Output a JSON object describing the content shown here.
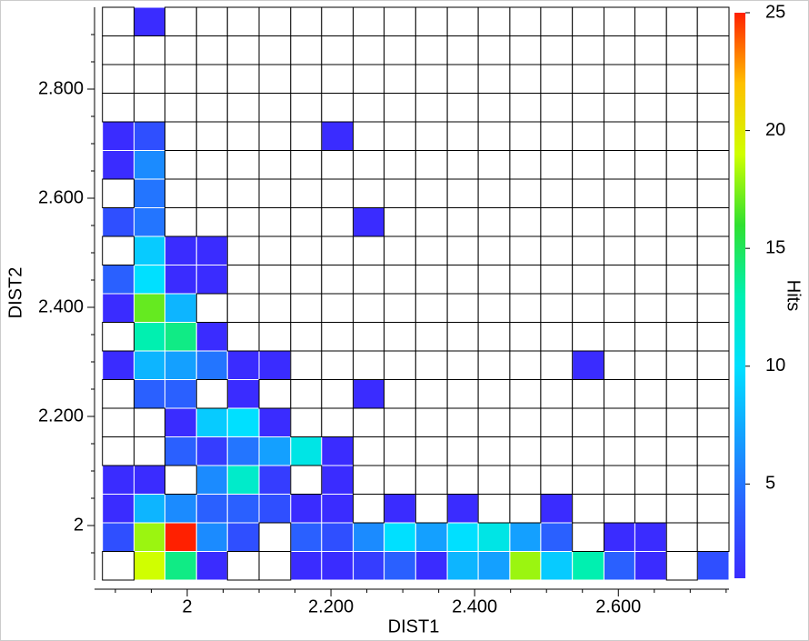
{
  "chart_data": {
    "type": "heatmap",
    "x_label": "DIST1",
    "y_label": "DIST2",
    "colorbar_label": "Hits",
    "xlim": [
      1.871,
      2.754
    ],
    "ylim": [
      1.9,
      2.95
    ],
    "xticks": [
      2,
      {
        "value": 2.2,
        "label": "2.200"
      },
      {
        "value": 2.4,
        "label": "2.400"
      },
      {
        "value": 2.6,
        "label": "2.600"
      }
    ],
    "yticks": [
      2,
      {
        "value": 2.2,
        "label": "2.200"
      },
      {
        "value": 2.4,
        "label": "2.400"
      },
      {
        "value": 2.6,
        "label": "2.600"
      },
      {
        "value": 2.8,
        "label": "2.800"
      }
    ],
    "x_minor_ticks": [
      1.9,
      1.95,
      2.05,
      2.1,
      2.15,
      2.25,
      2.3,
      2.35,
      2.45,
      2.5,
      2.55,
      2.65,
      2.7,
      2.75
    ],
    "y_minor_ticks": [
      1.95,
      2.05,
      2.1,
      2.15,
      2.25,
      2.3,
      2.35,
      2.45,
      2.5,
      2.55,
      2.65,
      2.7,
      2.75,
      2.85,
      2.9
    ],
    "xbins": [
      1.882,
      1.926,
      1.969,
      2.013,
      2.056,
      2.1,
      2.144,
      2.187,
      2.231,
      2.274,
      2.318,
      2.362,
      2.405,
      2.449,
      2.492,
      2.536,
      2.58,
      2.623,
      2.667,
      2.71,
      2.754
    ],
    "ybins": [
      1.9,
      1.9525,
      2.005,
      2.0575,
      2.11,
      2.1625,
      2.215,
      2.2675,
      2.32,
      2.3725,
      2.425,
      2.4775,
      2.53,
      2.5825,
      2.635,
      2.6875,
      2.74,
      2.7925,
      2.845,
      2.8975,
      2.95
    ],
    "clim": [
      1,
      25
    ],
    "cticks": [
      5,
      10,
      15,
      20,
      25
    ],
    "colormap": [
      "#3a2cff",
      "#2a60ff",
      "#14a0ff",
      "#00e0ff",
      "#00f0b0",
      "#30e030",
      "#d0ff00",
      "#ffc000",
      "#ff2000"
    ],
    "values": [
      [
        null,
        19,
        14,
        1,
        null,
        null,
        1,
        1,
        2,
        4,
        1,
        8,
        7,
        18,
        9,
        13,
        4,
        1,
        null,
        3
      ],
      [
        3,
        18,
        25,
        6,
        3,
        null,
        4,
        3,
        6,
        10,
        7,
        10,
        11,
        7,
        4,
        null,
        1,
        1,
        null,
        null
      ],
      [
        1,
        8,
        6,
        4,
        4,
        3,
        1,
        1,
        null,
        1,
        null,
        1,
        null,
        null,
        1,
        null,
        null,
        null,
        null,
        null
      ],
      [
        1,
        1,
        null,
        6,
        12,
        2,
        null,
        1,
        null,
        null,
        null,
        null,
        null,
        null,
        null,
        null,
        null,
        null,
        null,
        null
      ],
      [
        null,
        null,
        4,
        2,
        5,
        7,
        11,
        1,
        null,
        null,
        null,
        null,
        null,
        null,
        null,
        null,
        null,
        null,
        null,
        null
      ],
      [
        null,
        null,
        1,
        9,
        10,
        1,
        null,
        null,
        null,
        null,
        null,
        null,
        null,
        null,
        null,
        null,
        null,
        null,
        null,
        null
      ],
      [
        null,
        4,
        4,
        null,
        1,
        null,
        null,
        null,
        1,
        null,
        null,
        null,
        null,
        null,
        null,
        null,
        null,
        null,
        null,
        null
      ],
      [
        1,
        8,
        7,
        5,
        1,
        1,
        null,
        null,
        null,
        null,
        null,
        null,
        null,
        null,
        null,
        1,
        null,
        null,
        null,
        null
      ],
      [
        null,
        13,
        14,
        1,
        null,
        null,
        null,
        null,
        null,
        null,
        null,
        null,
        null,
        null,
        null,
        null,
        null,
        null,
        null,
        null
      ],
      [
        1,
        17,
        8,
        null,
        null,
        null,
        null,
        null,
        null,
        null,
        null,
        null,
        null,
        null,
        null,
        null,
        null,
        null,
        null,
        null
      ],
      [
        4,
        10,
        1,
        1,
        null,
        null,
        null,
        null,
        null,
        null,
        null,
        null,
        null,
        null,
        null,
        null,
        null,
        null,
        null,
        null
      ],
      [
        null,
        9,
        1,
        1,
        null,
        null,
        null,
        null,
        null,
        null,
        null,
        null,
        null,
        null,
        null,
        null,
        null,
        null,
        null,
        null
      ],
      [
        3,
        5,
        null,
        null,
        null,
        null,
        null,
        null,
        1,
        null,
        null,
        null,
        null,
        null,
        null,
        null,
        null,
        null,
        null,
        null
      ],
      [
        null,
        5,
        null,
        null,
        null,
        null,
        null,
        null,
        null,
        null,
        null,
        null,
        null,
        null,
        null,
        null,
        null,
        null,
        null,
        null
      ],
      [
        1,
        6,
        null,
        null,
        null,
        null,
        null,
        null,
        null,
        null,
        null,
        null,
        null,
        null,
        null,
        null,
        null,
        null,
        null,
        null
      ],
      [
        1,
        3,
        null,
        null,
        null,
        null,
        null,
        1,
        null,
        null,
        null,
        null,
        null,
        null,
        null,
        null,
        null,
        null,
        null,
        null
      ],
      [
        null,
        null,
        null,
        null,
        null,
        null,
        null,
        null,
        null,
        null,
        null,
        null,
        null,
        null,
        null,
        null,
        null,
        null,
        null,
        null
      ],
      [
        null,
        null,
        null,
        null,
        null,
        null,
        null,
        null,
        null,
        null,
        null,
        null,
        null,
        null,
        null,
        null,
        null,
        null,
        null,
        null
      ],
      [
        null,
        null,
        null,
        null,
        null,
        null,
        null,
        null,
        null,
        null,
        null,
        null,
        null,
        null,
        null,
        null,
        null,
        null,
        null,
        null
      ],
      [
        null,
        1,
        null,
        null,
        null,
        null,
        null,
        null,
        null,
        null,
        null,
        null,
        null,
        null,
        null,
        null,
        null,
        null,
        null,
        null
      ]
    ]
  }
}
